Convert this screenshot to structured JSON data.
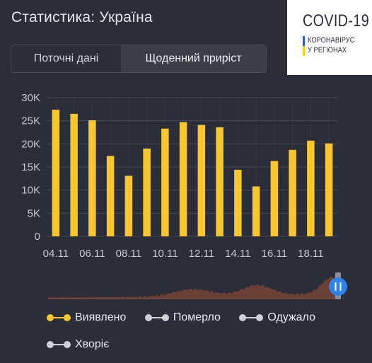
{
  "header": {
    "title": "Статистика: Україна"
  },
  "tabs": [
    {
      "label": "Поточні дані",
      "active": false
    },
    {
      "label": "Щоденний приріст",
      "active": true
    }
  ],
  "logo": {
    "title": "COVID-19",
    "line1": "КОРОНАВІРУС",
    "line2": "У РЕГІОНАХ",
    "flag_colors": [
      "#2a5ad6",
      "#f3d21b"
    ]
  },
  "chart_data": {
    "type": "bar",
    "categories": [
      "04.11",
      "05.11",
      "06.11",
      "07.11",
      "08.11",
      "09.11",
      "10.11",
      "11.11",
      "12.11",
      "13.11",
      "14.11",
      "15.11",
      "16.11",
      "17.11",
      "18.11",
      "19.11"
    ],
    "xtick_labels": [
      "04.11",
      "06.11",
      "08.11",
      "10.11",
      "12.11",
      "14.11",
      "16.11",
      "18.11"
    ],
    "series": [
      {
        "name": "Виявлено",
        "color": "#f8c630",
        "values": [
          27400,
          26500,
          25100,
          17400,
          13100,
          19000,
          23300,
          24700,
          24100,
          23600,
          14400,
          10800,
          16300,
          18700,
          20700,
          20100
        ]
      }
    ],
    "yticks": [
      0,
      5000,
      10000,
      15000,
      20000,
      25000,
      30000
    ],
    "ytick_labels": [
      "0",
      "5K",
      "10K",
      "15K",
      "20K",
      "25K",
      "30K"
    ],
    "ylim": [
      0,
      30000
    ],
    "grid": true,
    "colors": {
      "grid": "#454754",
      "axis_text": "#c8c8d0",
      "bars": "#f8c630",
      "overview": "#6e4036",
      "handle": "#2f82e8"
    }
  },
  "legend": [
    {
      "label": "Виявлено",
      "color": "#f8c630"
    },
    {
      "label": "Померло",
      "color": "#cfd0d6"
    },
    {
      "label": "Одужало",
      "color": "#cfd0d6"
    },
    {
      "label": "Хворіє",
      "color": "#cfd0d6"
    }
  ]
}
